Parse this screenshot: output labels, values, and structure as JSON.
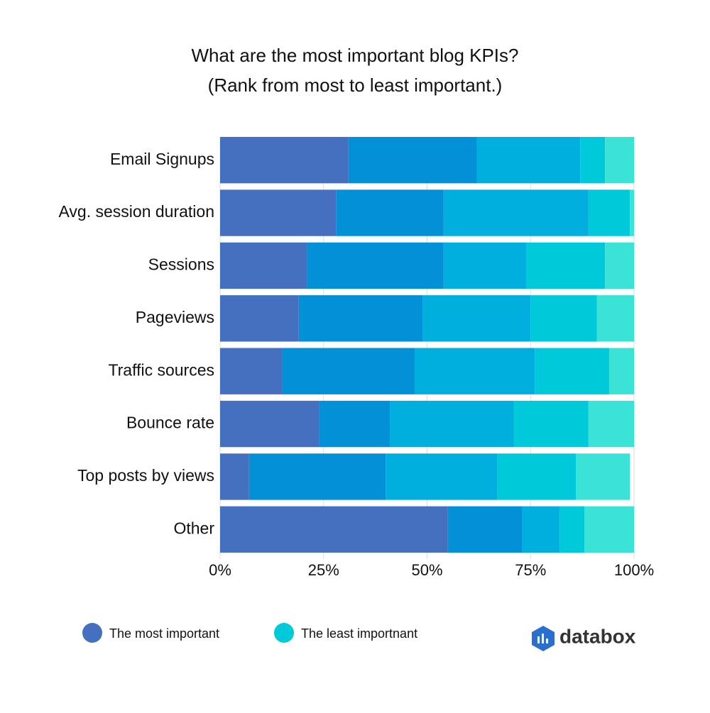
{
  "chart_data": {
    "type": "stacked-barh",
    "title": "What are the most important blog KPIs?",
    "subtitle": "(Rank from most to least important.)",
    "categories": [
      "Email Signups",
      "Avg. session duration",
      "Sessions",
      "Pageviews",
      "Traffic sources",
      "Bounce rate",
      "Top posts by views",
      "Other"
    ],
    "series": [
      {
        "color": "#4470bf",
        "values": [
          31,
          28,
          21,
          19,
          15,
          24,
          7,
          55
        ]
      },
      {
        "color": "#0290d6",
        "values": [
          31,
          26,
          33,
          30,
          32,
          17,
          33,
          18
        ]
      },
      {
        "color": "#01afde",
        "values": [
          25,
          35,
          20,
          26,
          29,
          30,
          27,
          9
        ]
      },
      {
        "color": "#00c9da",
        "values": [
          6,
          10,
          19,
          16,
          18,
          18,
          19,
          6
        ]
      },
      {
        "color": "#3be3d6",
        "values": [
          7,
          1,
          7,
          9,
          6,
          11,
          13,
          12
        ]
      }
    ],
    "legend": [
      {
        "name": "The most important",
        "color": "#4470bf"
      },
      {
        "name": "The least importnant",
        "color": "#00c9da"
      }
    ],
    "xlim": [
      0,
      100
    ],
    "xticks": [
      {
        "value": 0,
        "label": "0%"
      },
      {
        "value": 25,
        "label": "25%"
      },
      {
        "value": 50,
        "label": "50%"
      },
      {
        "value": 75,
        "label": "75%"
      },
      {
        "value": 100,
        "label": "100%"
      }
    ],
    "grid": true,
    "brand": "databox"
  }
}
